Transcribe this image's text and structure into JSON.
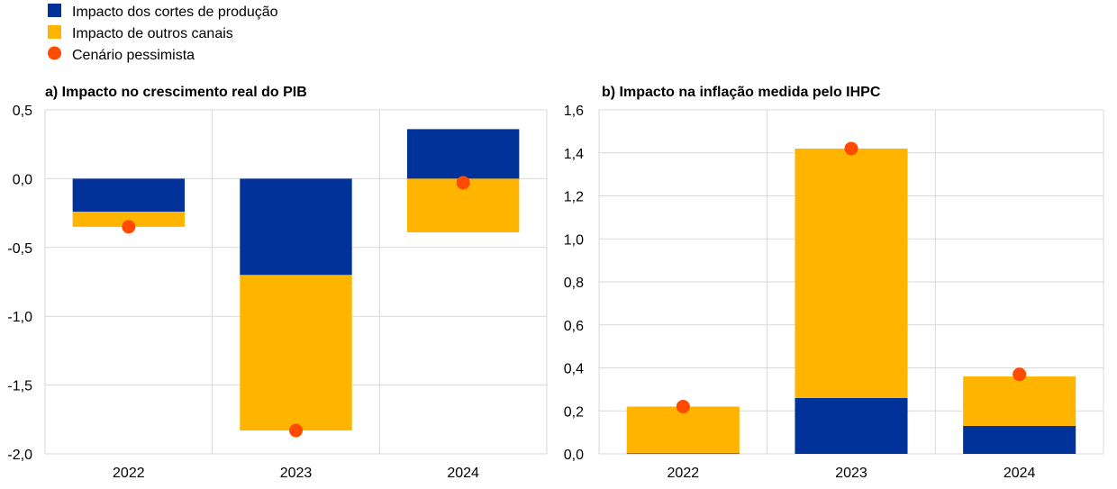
{
  "legend": [
    {
      "label": "Impacto dos cortes de produção",
      "color": "#003299",
      "shape": "square"
    },
    {
      "label": "Impacto de outros canais",
      "color": "#FFB400",
      "shape": "square"
    },
    {
      "label": "Cenário pessimista",
      "color": "#FF4B00",
      "shape": "circle"
    }
  ],
  "chart_data": [
    {
      "type": "bar",
      "stacked": true,
      "title": "a) Impacto no crescimento real do PIB",
      "categories": [
        "2022",
        "2023",
        "2024"
      ],
      "ylim": [
        -2.0,
        0.5
      ],
      "yticks": [
        "0,5",
        "0,0",
        "-0,5",
        "-1,0",
        "-1,5",
        "-2,0"
      ],
      "ytick_values": [
        0.5,
        0.0,
        -0.5,
        -1.0,
        -1.5,
        -2.0
      ],
      "grid": true,
      "series": [
        {
          "name": "Impacto dos cortes de produção",
          "type": "bar",
          "values": [
            -0.24,
            -0.7,
            0.36
          ]
        },
        {
          "name": "Impacto de outros canais",
          "type": "bar",
          "values": [
            -0.11,
            -1.13,
            -0.39
          ]
        },
        {
          "name": "Cenário pessimista",
          "type": "scatter",
          "values": [
            -0.35,
            -1.83,
            -0.03
          ]
        }
      ]
    },
    {
      "type": "bar",
      "stacked": true,
      "title": "b) Impacto na inflação medida pelo IHPC",
      "categories": [
        "2022",
        "2023",
        "2024"
      ],
      "ylim": [
        0.0,
        1.6
      ],
      "yticks": [
        "1,6",
        "1,4",
        "1,2",
        "1,0",
        "0,8",
        "0,6",
        "0,4",
        "0,2",
        "0,0"
      ],
      "ytick_values": [
        1.6,
        1.4,
        1.2,
        1.0,
        0.8,
        0.6,
        0.4,
        0.2,
        0.0
      ],
      "grid": true,
      "series": [
        {
          "name": "Impacto dos cortes de produção",
          "type": "bar",
          "values": [
            0.003,
            0.26,
            0.13
          ]
        },
        {
          "name": "Impacto de outros canais",
          "type": "bar",
          "values": [
            0.217,
            1.16,
            0.23
          ]
        },
        {
          "name": "Cenário pessimista",
          "type": "scatter",
          "values": [
            0.22,
            1.42,
            0.37
          ]
        }
      ]
    }
  ]
}
